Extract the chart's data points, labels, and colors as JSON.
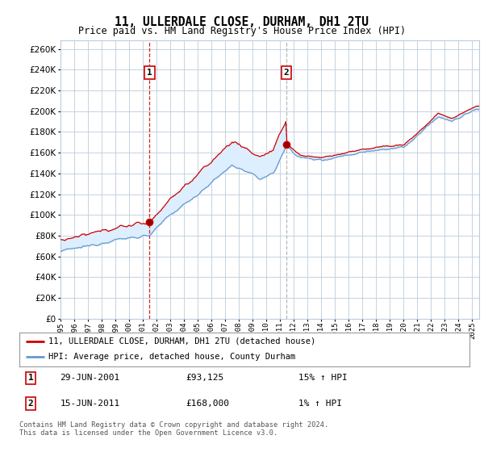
{
  "title": "11, ULLERDALE CLOSE, DURHAM, DH1 2TU",
  "subtitle": "Price paid vs. HM Land Registry's House Price Index (HPI)",
  "ylabel_ticks": [
    0,
    20000,
    40000,
    60000,
    80000,
    100000,
    120000,
    140000,
    160000,
    180000,
    200000,
    220000,
    240000,
    260000
  ],
  "ylim": [
    0,
    268000
  ],
  "xlim_start": 1995.0,
  "xlim_end": 2025.5,
  "sale1_date": 2001.49,
  "sale1_price": 93125,
  "sale1_label": "29-JUN-2001",
  "sale1_amount": "£93,125",
  "sale1_hpi": "15% ↑ HPI",
  "sale2_date": 2011.46,
  "sale2_price": 168000,
  "sale2_label": "15-JUN-2011",
  "sale2_amount": "£168,000",
  "sale2_hpi": "1% ↑ HPI",
  "legend_line1": "11, ULLERDALE CLOSE, DURHAM, DH1 2TU (detached house)",
  "legend_line2": "HPI: Average price, detached house, County Durham",
  "footnote": "Contains HM Land Registry data © Crown copyright and database right 2024.\nThis data is licensed under the Open Government Licence v3.0.",
  "red_color": "#cc0000",
  "blue_color": "#6699cc",
  "background_color": "#ffffff",
  "plot_bg_color": "#ffffff",
  "grid_color": "#bbccdd",
  "shade_color": "#ddeeff"
}
